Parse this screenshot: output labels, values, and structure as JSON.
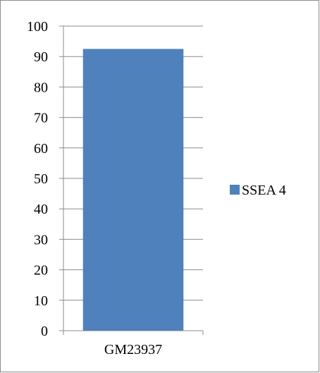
{
  "chart_data": {
    "type": "bar",
    "categories": [
      "GM23937"
    ],
    "series": [
      {
        "name": "SSEA 4",
        "values": [
          92.5
        ],
        "color": "#4f81bd"
      }
    ],
    "ylim": [
      0,
      100
    ],
    "yticks": [
      0,
      10,
      20,
      30,
      40,
      50,
      60,
      70,
      80,
      90,
      100
    ],
    "grid": true,
    "legend": "right"
  }
}
